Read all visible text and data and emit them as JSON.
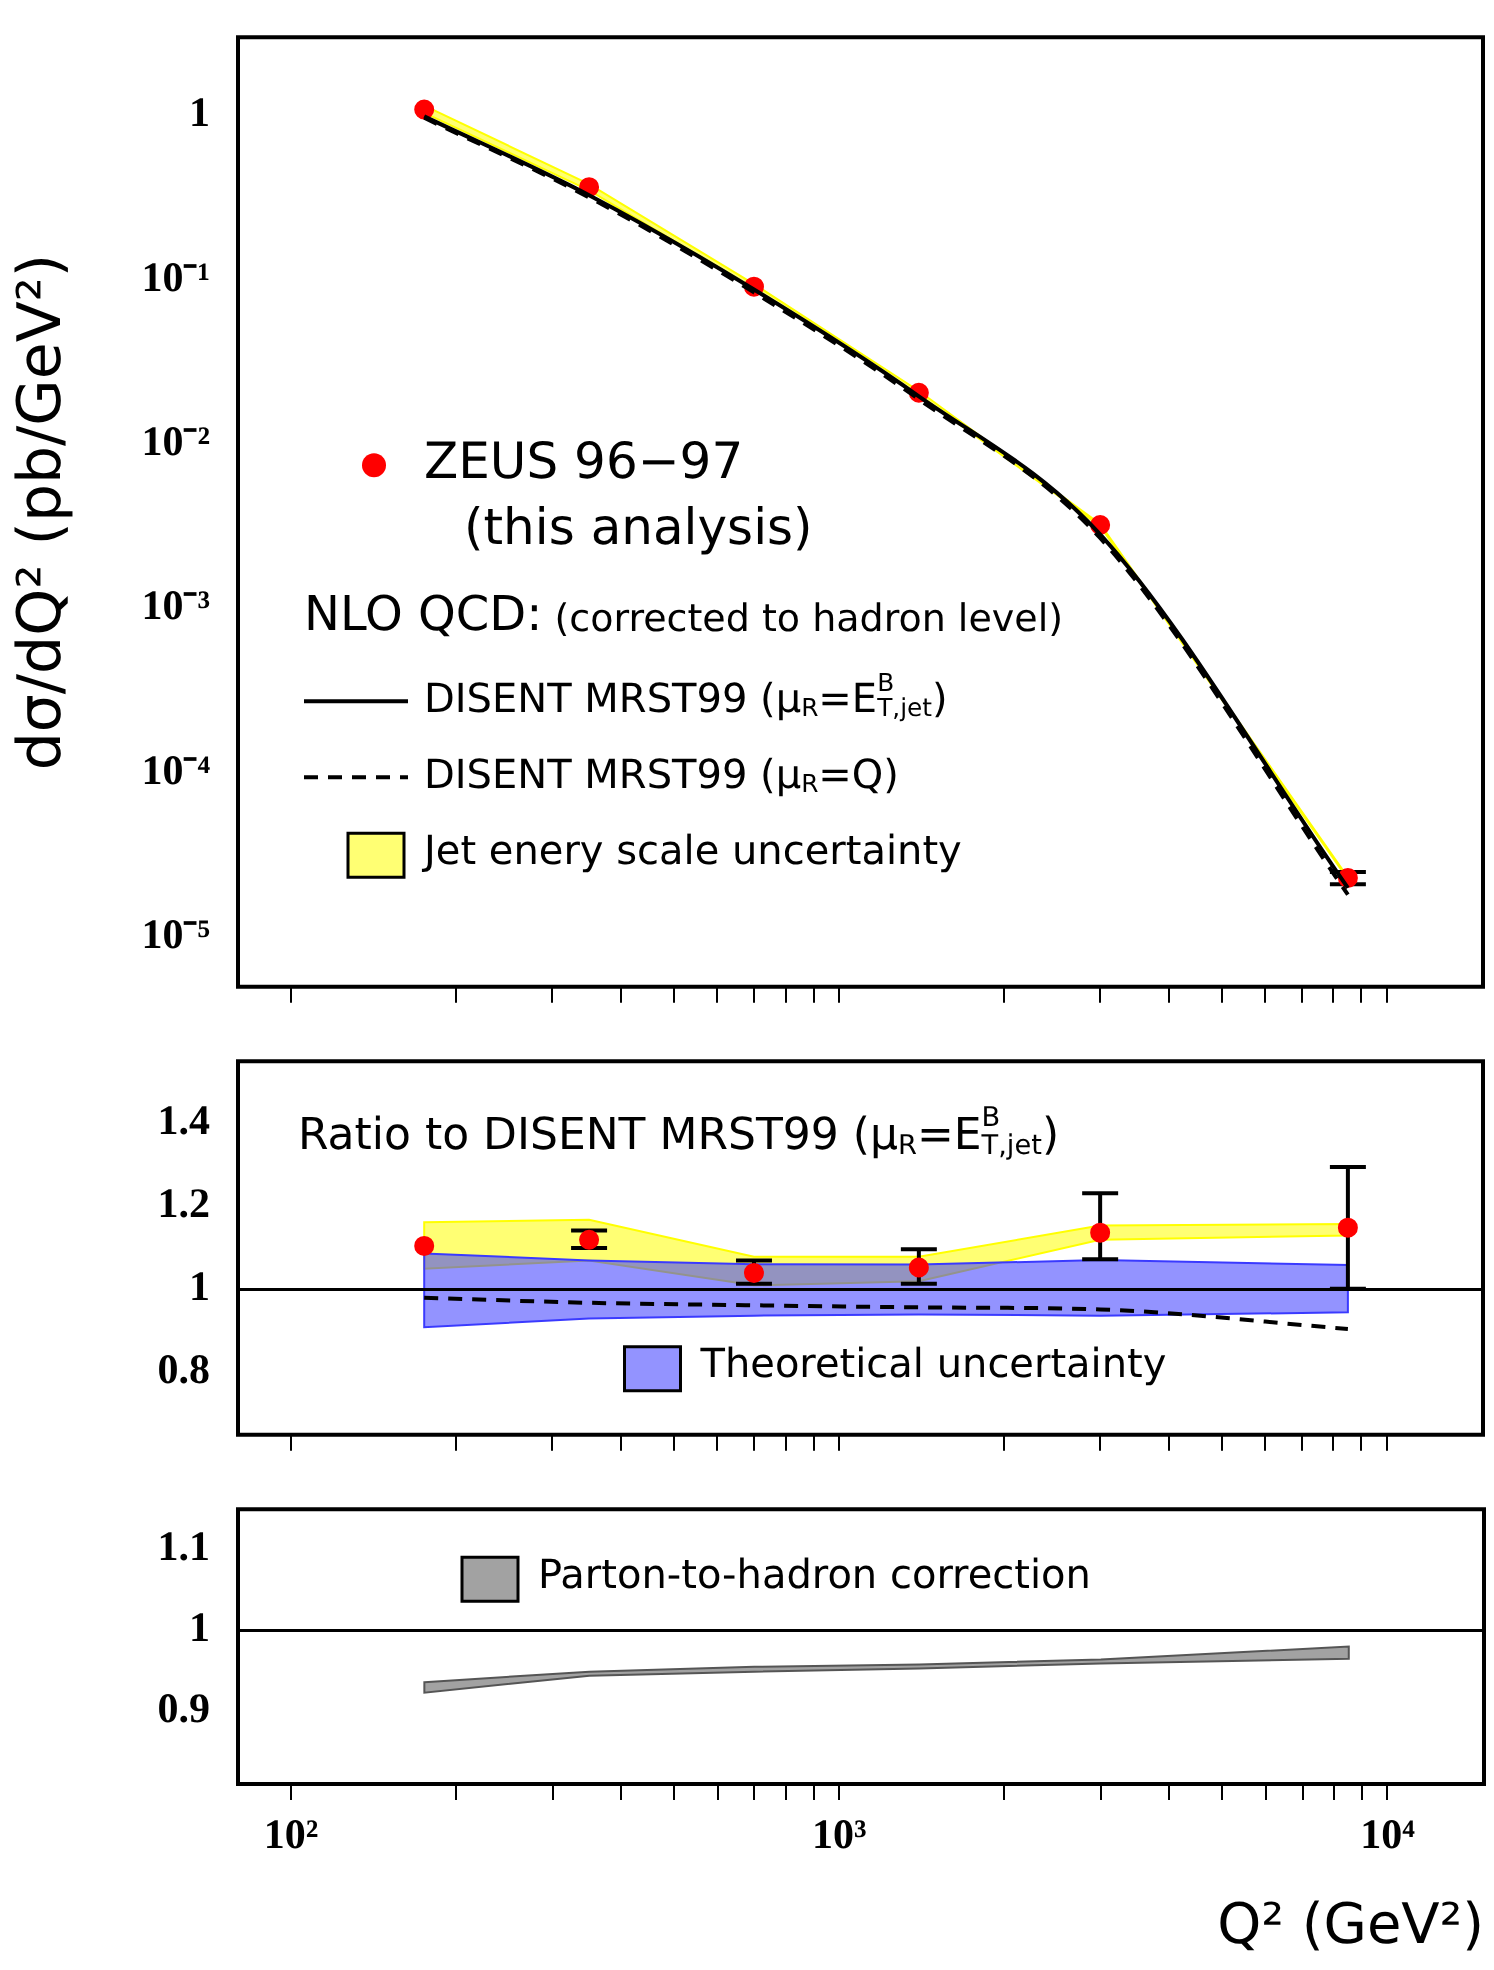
{
  "chart_data": [
    {
      "type": "line",
      "log": "xy",
      "x": [
        175,
        350,
        700,
        1400,
        3000,
        8500
      ],
      "ylabel": "dσ/dQ² (pb/GeV²)",
      "xlim": [
        80,
        15000
      ],
      "ylim": [
        5e-06,
        3
      ],
      "xticks": [
        {
          "value": 100,
          "label": null
        },
        {
          "value": 200,
          "label": null
        },
        {
          "value": 300,
          "label": null
        },
        {
          "value": 400,
          "label": null
        },
        {
          "value": 500,
          "label": null
        },
        {
          "value": 600,
          "label": null
        },
        {
          "value": 700,
          "label": null
        },
        {
          "value": 800,
          "label": null
        },
        {
          "value": 900,
          "label": null
        },
        {
          "value": 1000,
          "label": null
        },
        {
          "value": 2000,
          "label": null
        },
        {
          "value": 3000,
          "label": null
        },
        {
          "value": 4000,
          "label": null
        },
        {
          "value": 5000,
          "label": null
        },
        {
          "value": 6000,
          "label": null
        },
        {
          "value": 7000,
          "label": null
        },
        {
          "value": 8000,
          "label": null
        },
        {
          "value": 9000,
          "label": null
        },
        {
          "value": 10000,
          "label": null
        }
      ],
      "yticks": [
        {
          "value": 1e-05,
          "label": "10⁻⁵"
        },
        {
          "value": 0.0001,
          "label": "10⁻⁴"
        },
        {
          "value": 0.001,
          "label": "10⁻³"
        },
        {
          "value": 0.01,
          "label": "10⁻²"
        },
        {
          "value": 0.1,
          "label": "10⁻¹"
        },
        1
      ],
      "tick_labels": "y",
      "legend": "left",
      "legend_title": "NLO QCD: (corrected to hadron level)",
      "series": [
        {
          "name": "ZEUS 96−97 (this analysis)",
          "type": "scatter",
          "marker": "circle",
          "color": "#ff0000",
          "values": [
            1.09,
            0.367,
            0.091,
            0.0206,
            0.00323,
            2.3e-05
          ],
          "errors": [
            null,
            null,
            null,
            null,
            null,
            [
              2.1e-05,
              2.5e-05
            ]
          ]
        },
        {
          "name": "DISENT MRST99 (μ$_{R}$=E$^{B}$$_{T,jet}$)",
          "type": "line",
          "line_style": "solid",
          "color": "#000000",
          "values": [
            0.99,
            0.328,
            0.0875,
            0.0196,
            0.00283,
            2e-05
          ]
        },
        {
          "name": "DISENT MRST99 (μ$_{R}$=Q)",
          "type": "line",
          "line_style": "dashed",
          "color": "#000000",
          "values": [
            0.97,
            0.318,
            0.084,
            0.0188,
            0.00269,
            1.82e-05
          ]
        },
        {
          "name": "Jet enery scale uncertainty",
          "type": "area",
          "color": "#ffff00",
          "values": [
            null,
            null,
            null,
            null,
            null,
            null
          ],
          "lower": [
            1.04,
            0.351,
            0.0884,
            0.02,
            0.00317,
            2.26e-05
          ],
          "upper": [
            1.15,
            0.383,
            0.0944,
            0.0211,
            0.00327,
            2.32e-05
          ]
        }
      ]
    },
    {
      "type": "line",
      "log": "x",
      "x": [
        175,
        350,
        700,
        1400,
        3000,
        8500
      ],
      "xlim": [
        80,
        15000
      ],
      "ylim": [
        0.65,
        1.55
      ],
      "xticks": [
        {
          "value": 100,
          "label": null
        },
        {
          "value": 200,
          "label": null
        },
        {
          "value": 300,
          "label": null
        },
        {
          "value": 400,
          "label": null
        },
        {
          "value": 500,
          "label": null
        },
        {
          "value": 600,
          "label": null
        },
        {
          "value": 700,
          "label": null
        },
        {
          "value": 800,
          "label": null
        },
        {
          "value": 900,
          "label": null
        },
        {
          "value": 1000,
          "label": null
        },
        {
          "value": 2000,
          "label": null
        },
        {
          "value": 3000,
          "label": null
        },
        {
          "value": 4000,
          "label": null
        },
        {
          "value": 5000,
          "label": null
        },
        {
          "value": 6000,
          "label": null
        },
        {
          "value": 7000,
          "label": null
        },
        {
          "value": 8000,
          "label": null
        },
        {
          "value": 9000,
          "label": null
        },
        {
          "value": 10000,
          "label": null
        }
      ],
      "yticks": [
        0.8,
        1,
        1.2,
        1.4
      ],
      "tick_labels": "y",
      "legend": "bottom",
      "annotations": [
        "Ratio to DISENT MRST99 (μ$_{R}$=E$^{B}$$_{T,jet}$)"
      ],
      "ref_lines": [
        {
          "axis": "y",
          "value": 1,
          "color": "#000000",
          "line_style": "solid"
        }
      ],
      "series": [
        {
          "type": "area",
          "color": "#ffff00",
          "values": [
            null,
            null,
            null,
            null,
            null,
            null
          ],
          "lower": [
            1.05,
            1.07,
            1.01,
            1.02,
            1.12,
            1.13
          ],
          "upper": [
            1.162,
            1.168,
            1.079,
            1.079,
            1.154,
            1.158
          ]
        },
        {
          "name": "Theoretical uncertainty",
          "type": "area",
          "color": "#3a3aff",
          "values": [
            null,
            null,
            null,
            null,
            null,
            null
          ],
          "lower": [
            0.909,
            0.93,
            0.937,
            0.94,
            0.937,
            0.945
          ],
          "upper": [
            1.087,
            1.07,
            1.061,
            1.06,
            1.071,
            1.059
          ]
        },
        {
          "type": "line",
          "line_style": "dashed",
          "color": "#000000",
          "values": [
            0.98,
            0.968,
            0.962,
            0.957,
            0.952,
            0.905
          ]
        },
        {
          "type": "scatter",
          "marker": "circle",
          "color": "#ff0000",
          "values": [
            1.105,
            1.12,
            1.04,
            1.053,
            1.137,
            1.149
          ],
          "errors": [
            null,
            [
              1.1,
              1.142
            ],
            [
              1.014,
              1.07
            ],
            [
              1.014,
              1.097
            ],
            [
              1.073,
              1.232
            ],
            [
              1.002,
              1.295
            ]
          ]
        }
      ]
    },
    {
      "type": "line",
      "log": "x",
      "x": [
        175,
        350,
        700,
        1400,
        3000,
        8500
      ],
      "xlabel": "Q² (GeV²)",
      "xlim": [
        80,
        15000
      ],
      "ylim": [
        0.81,
        1.15
      ],
      "xticks": [
        {
          "value": 100,
          "label": "10²"
        },
        {
          "value": 200,
          "label": null
        },
        {
          "value": 300,
          "label": null
        },
        {
          "value": 400,
          "label": null
        },
        {
          "value": 500,
          "label": null
        },
        {
          "value": 600,
          "label": null
        },
        {
          "value": 700,
          "label": null
        },
        {
          "value": 800,
          "label": null
        },
        {
          "value": 900,
          "label": null
        },
        {
          "value": 1000,
          "label": "10³"
        },
        {
          "value": 2000,
          "label": null
        },
        {
          "value": 3000,
          "label": null
        },
        {
          "value": 4000,
          "label": null
        },
        {
          "value": 5000,
          "label": null
        },
        {
          "value": 6000,
          "label": null
        },
        {
          "value": 7000,
          "label": null
        },
        {
          "value": 8000,
          "label": null
        },
        {
          "value": 9000,
          "label": null
        },
        {
          "value": 10000,
          "label": "10⁴"
        }
      ],
      "yticks": [
        0.9,
        1,
        1.1
      ],
      "legend": "top left",
      "ref_lines": [
        {
          "axis": "y",
          "value": 1,
          "color": "#000000",
          "line_style": "solid"
        }
      ],
      "series": [
        {
          "name": "Parton-to-hadron correction",
          "type": "area",
          "color": "#555555",
          "values": [
            null,
            null,
            null,
            null,
            null,
            null
          ],
          "lower": [
            0.923,
            0.944,
            0.949,
            0.953,
            0.959,
            0.965
          ],
          "upper": [
            0.936,
            0.949,
            0.955,
            0.958,
            0.964,
            0.98
          ]
        }
      ]
    }
  ]
}
